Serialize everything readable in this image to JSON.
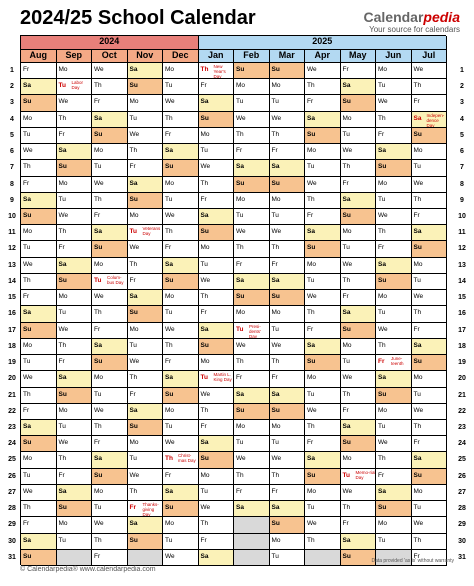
{
  "title": "2024/25 School Calendar",
  "logo": {
    "brand_main": "Calendar",
    "brand_accent": "pedia",
    "tagline": "Your source for calendars"
  },
  "years": [
    {
      "label": "2024",
      "months": [
        "Aug",
        "Sep",
        "Oct",
        "Nov",
        "Dec"
      ]
    },
    {
      "label": "2025",
      "months": [
        "Jan",
        "Feb",
        "Mar",
        "Apr",
        "May",
        "Jun",
        "Jul"
      ]
    }
  ],
  "days_in_month": [
    31,
    30,
    31,
    30,
    31,
    31,
    28,
    31,
    30,
    31,
    30,
    31
  ],
  "first_weekday": [
    4,
    0,
    2,
    5,
    0,
    3,
    6,
    6,
    2,
    4,
    0,
    2
  ],
  "weekday_abbr": [
    "Mo",
    "Tu",
    "We",
    "Th",
    "Fr",
    "Sa",
    "Su"
  ],
  "holidays": [
    {
      "month": 1,
      "day": 2,
      "text": "Labor Day"
    },
    {
      "month": 2,
      "day": 14,
      "text": "Colum-bus Day"
    },
    {
      "month": 3,
      "day": 11,
      "text": "Veterans Day"
    },
    {
      "month": 3,
      "day": 28,
      "text": "Thanks-giving Day"
    },
    {
      "month": 4,
      "day": 25,
      "text": "Christ-mas Day"
    },
    {
      "month": 5,
      "day": 1,
      "text": "New Year's Day"
    },
    {
      "month": 5,
      "day": 20,
      "text": "Martin L. King Day"
    },
    {
      "month": 6,
      "day": 17,
      "text": "Presi-dents' Day"
    },
    {
      "month": 9,
      "day": 26,
      "text": "Memo-rial Day"
    },
    {
      "month": 10,
      "day": 19,
      "text": "June-teenth"
    },
    {
      "month": 11,
      "day": 4,
      "text": "Indepen-dence Day"
    }
  ],
  "colors": {
    "year1_header": "#e8807a",
    "year2_header": "#b3d9f2",
    "month_header": "#f4a986",
    "saturday": "#fbf2b8",
    "sunday": "#f7c390",
    "empty": "#d9d9d9",
    "holiday_text": "#cc0000"
  },
  "footer": {
    "left": "© Calendarpedia®  www.calendarpedia.com",
    "right": "Data provided 'as is' without warranty"
  }
}
